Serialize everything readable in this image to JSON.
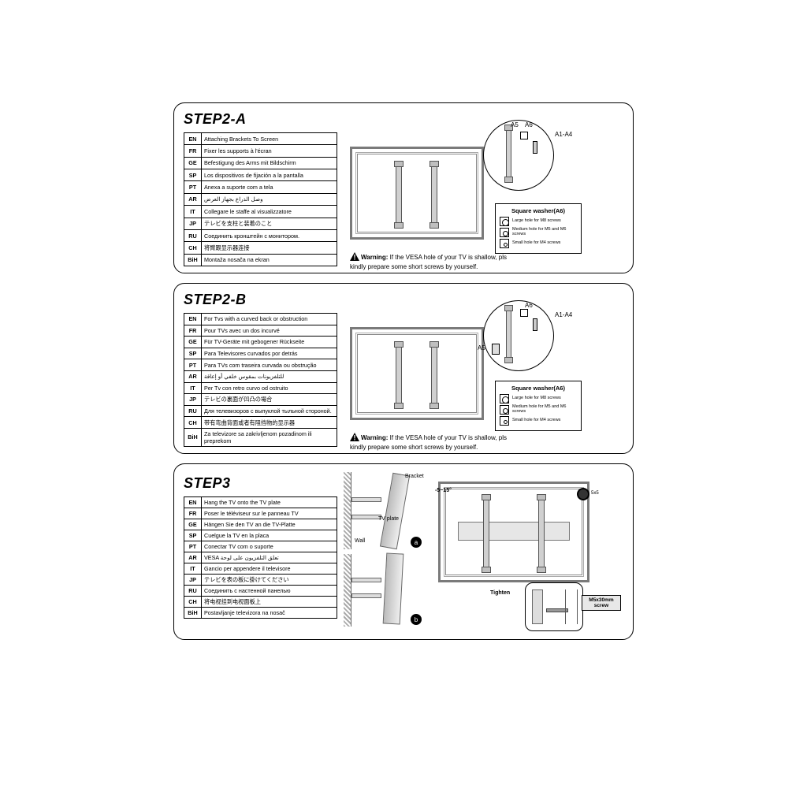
{
  "step2a": {
    "title": "STEP2-A",
    "rows": [
      {
        "code": "EN",
        "text": "Attaching Brackets To Screen"
      },
      {
        "code": "FR",
        "text": "Fixer les supports à l'écran"
      },
      {
        "code": "GE",
        "text": "Befestigung des Arms mit Bildschirm"
      },
      {
        "code": "SP",
        "text": "Los dispositivos de fijación a la pantalla"
      },
      {
        "code": "PT",
        "text": "Anexa a suporte com a tela"
      },
      {
        "code": "AR",
        "text": "وصل الذراع بجهاز العرض"
      },
      {
        "code": "IT",
        "text": "Collegare le staffe al visualizzatore"
      },
      {
        "code": "JP",
        "text": "テレビを支柱と装着のこと"
      },
      {
        "code": "RU",
        "text": "Соединить кронштейн с монитором."
      },
      {
        "code": "CH",
        "text": "将臂跟显示器连接"
      },
      {
        "code": "BiH",
        "text": "Montaža nosača na ekran"
      }
    ],
    "labels": {
      "a5": "A5",
      "a6": "A6",
      "a14": "A1-A4"
    },
    "washer_title": "Square washer(A6)",
    "washer_rows": [
      {
        "cls": "lg",
        "txt": "Large hole for M8 screws"
      },
      {
        "cls": "md",
        "txt": "Medium hole for M5 and M6 screws"
      },
      {
        "cls": "sm",
        "txt": "Small hole for M4 screws"
      }
    ],
    "warning_label": "Warning:",
    "warning_text": "If the VESA hole of your TV is shallow, pls kindly prepare some short screws by yourself."
  },
  "step2b": {
    "title": "STEP2-B",
    "rows": [
      {
        "code": "EN",
        "text": "For Tvs with a curved back or obstruction"
      },
      {
        "code": "FR",
        "text": "Pour TVs avec un dos incurvé"
      },
      {
        "code": "GE",
        "text": "Für TV-Geräte mit gebogener Rückseite"
      },
      {
        "code": "SP",
        "text": "Para Televisores curvados por detrás"
      },
      {
        "code": "PT",
        "text": "Para TVs com traseira curvada ou obstrução"
      },
      {
        "code": "AR",
        "text": "للتلفزيونات بمقوس خلفي أو إعاقة"
      },
      {
        "code": "IT",
        "text": "Per Tv con retro curvo od ostruito"
      },
      {
        "code": "JP",
        "text": "テレビの裏面が凹凸の場合"
      },
      {
        "code": "RU",
        "text": "Для телевизоров с выпуклой тыльной стороной."
      },
      {
        "code": "CH",
        "text": "带有弯曲背面或者有阻挡物的显示器"
      },
      {
        "code": "BiH",
        "text": "Za televizore sa zakrivljenom pozadinom ili preprekom"
      }
    ],
    "labels": {
      "a5": "A5",
      "a6": "A6",
      "a14": "A1-A4"
    },
    "washer_title": "Square washer(A6)",
    "washer_rows": [
      {
        "cls": "lg",
        "txt": "Large hole for M8 screws"
      },
      {
        "cls": "md",
        "txt": "Medium hole for M5 and M6 screws"
      },
      {
        "cls": "sm",
        "txt": "Small hole for M4 screws"
      }
    ],
    "warning_label": "Warning:",
    "warning_text": "If the VESA hole of your TV is shallow, pls kindly prepare some short screws by yourself."
  },
  "step3": {
    "title": "STEP3",
    "rows": [
      {
        "code": "EN",
        "text": "Hang the TV onto the TV plate"
      },
      {
        "code": "FR",
        "text": "Poser le téléviseur sur le panneau TV"
      },
      {
        "code": "GE",
        "text": "Hängen Sie den TV an die TV-Platte"
      },
      {
        "code": "SP",
        "text": "Cuelgue la TV en la placa"
      },
      {
        "code": "PT",
        "text": "Conectar TV com o suporte"
      },
      {
        "code": "AR",
        "text": "VESA تعلق التلفزيون على لوحة"
      },
      {
        "code": "IT",
        "text": "Gancio per appendere il televisore"
      },
      {
        "code": "JP",
        "text": "テレビを表の板に掛けてください"
      },
      {
        "code": "RU",
        "text": "Соединить с настенной панелью"
      },
      {
        "code": "CH",
        "text": "将电视挂到电视面板上"
      },
      {
        "code": "BiH",
        "text": "Postavljanje televizora na nosač"
      }
    ],
    "labels": {
      "bracket": "Bracket",
      "tvplate": "TV plate",
      "wall": "Wall",
      "tilt": "-5~15°",
      "tighten": "Tighten",
      "screw": "M5x30mm screw",
      "hex": "5x5",
      "a": "a",
      "b": "b"
    }
  }
}
